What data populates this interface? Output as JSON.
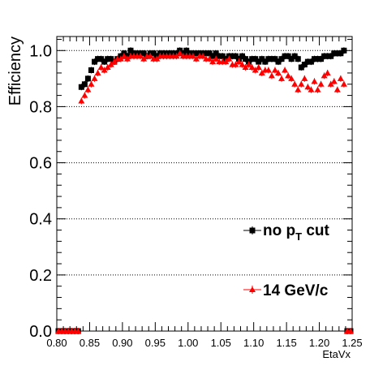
{
  "chart_data": {
    "type": "scatter",
    "title": "",
    "xlabel": "EtaVx",
    "ylabel": "Efficiency",
    "xlim": [
      0.8,
      1.25
    ],
    "ylim": [
      0.0,
      1.05
    ],
    "x_ticks": [
      "0.80",
      "0.85",
      "0.90",
      "0.95",
      "1.00",
      "1.05",
      "1.10",
      "1.15",
      "1.20",
      "1.25"
    ],
    "y_ticks": [
      "0.0",
      "0.2",
      "0.4",
      "0.6",
      "0.8",
      "1.0"
    ],
    "grid": "horizontal-dotted",
    "legend_placement": "bottom-right",
    "series": [
      {
        "name": "no p_T cut",
        "legend_main": "no p",
        "legend_sub": "T",
        "legend_tail": " cut",
        "marker": "square",
        "color": "#000000",
        "x": [
          0.8025,
          0.8075,
          0.8125,
          0.8175,
          0.8225,
          0.8275,
          0.8325,
          0.8375,
          0.8425,
          0.8475,
          0.8525,
          0.8575,
          0.8625,
          0.8675,
          0.8725,
          0.8775,
          0.8825,
          0.8875,
          0.8925,
          0.8975,
          0.9025,
          0.9075,
          0.9125,
          0.9175,
          0.9225,
          0.9275,
          0.9325,
          0.9375,
          0.9425,
          0.9475,
          0.9525,
          0.9575,
          0.9625,
          0.9675,
          0.9725,
          0.9775,
          0.9825,
          0.9875,
          0.9925,
          0.9975,
          1.0025,
          1.0075,
          1.0125,
          1.0175,
          1.0225,
          1.0275,
          1.0325,
          1.0375,
          1.0425,
          1.0475,
          1.0525,
          1.0575,
          1.0625,
          1.0675,
          1.0725,
          1.0775,
          1.0825,
          1.0875,
          1.0925,
          1.0975,
          1.1025,
          1.1075,
          1.1125,
          1.1175,
          1.1225,
          1.1275,
          1.1325,
          1.1375,
          1.1425,
          1.1475,
          1.1525,
          1.1575,
          1.1625,
          1.1675,
          1.1725,
          1.1775,
          1.1825,
          1.1875,
          1.1925,
          1.1975,
          1.2025,
          1.2075,
          1.2125,
          1.2175,
          1.2225,
          1.2275,
          1.2325,
          1.2375,
          1.2425,
          1.2475
        ],
        "y": [
          0.0,
          0.0,
          0.0,
          0.0,
          0.0,
          0.0,
          0.0,
          0.87,
          0.88,
          0.9,
          0.93,
          0.96,
          0.97,
          0.97,
          0.96,
          0.97,
          0.97,
          0.96,
          0.97,
          0.98,
          0.99,
          0.98,
          1.0,
          0.99,
          0.99,
          0.99,
          0.99,
          0.98,
          0.99,
          0.99,
          0.98,
          0.99,
          0.99,
          0.99,
          0.99,
          0.99,
          0.99,
          1.0,
          0.99,
          1.0,
          0.99,
          0.99,
          0.99,
          0.99,
          0.99,
          0.99,
          0.99,
          0.98,
          0.99,
          0.98,
          0.98,
          0.97,
          0.98,
          0.98,
          0.98,
          0.97,
          0.98,
          0.97,
          0.96,
          0.97,
          0.97,
          0.96,
          0.97,
          0.96,
          0.97,
          0.97,
          0.97,
          0.96,
          0.97,
          0.98,
          0.98,
          0.97,
          0.98,
          0.97,
          0.94,
          0.95,
          0.96,
          0.96,
          0.97,
          0.97,
          0.97,
          0.98,
          0.98,
          0.98,
          0.99,
          0.99,
          0.99,
          1.0,
          0.0,
          0.0
        ]
      },
      {
        "name": "14 GeV/c",
        "legend_main": "14 GeV/c",
        "marker": "triangle",
        "color": "#ff0000",
        "x": [
          0.8025,
          0.8075,
          0.8125,
          0.8175,
          0.8225,
          0.8275,
          0.8325,
          0.8375,
          0.8425,
          0.8475,
          0.8525,
          0.8575,
          0.8625,
          0.8675,
          0.8725,
          0.8775,
          0.8825,
          0.8875,
          0.8925,
          0.8975,
          0.9025,
          0.9075,
          0.9125,
          0.9175,
          0.9225,
          0.9275,
          0.9325,
          0.9375,
          0.9425,
          0.9475,
          0.9525,
          0.9575,
          0.9625,
          0.9675,
          0.9725,
          0.9775,
          0.9825,
          0.9875,
          0.9925,
          0.9975,
          1.0025,
          1.0075,
          1.0125,
          1.0175,
          1.0225,
          1.0275,
          1.0325,
          1.0375,
          1.0425,
          1.0475,
          1.0525,
          1.0575,
          1.0625,
          1.0675,
          1.0725,
          1.0775,
          1.0825,
          1.0875,
          1.0925,
          1.0975,
          1.1025,
          1.1075,
          1.1125,
          1.1175,
          1.1225,
          1.1275,
          1.1325,
          1.1375,
          1.1425,
          1.1475,
          1.1525,
          1.1575,
          1.1625,
          1.1675,
          1.1725,
          1.1775,
          1.1825,
          1.1875,
          1.1925,
          1.1975,
          1.2025,
          1.2075,
          1.2125,
          1.2175,
          1.2225,
          1.2275,
          1.2325,
          1.2375,
          1.2425,
          1.2475
        ],
        "y": [
          0.0,
          0.0,
          0.0,
          0.0,
          0.0,
          0.0,
          0.0,
          0.82,
          0.84,
          0.86,
          0.88,
          0.9,
          0.92,
          0.94,
          0.93,
          0.94,
          0.95,
          0.96,
          0.97,
          0.97,
          0.98,
          0.97,
          0.98,
          0.98,
          0.98,
          0.98,
          0.97,
          0.98,
          0.98,
          0.97,
          0.97,
          0.98,
          0.98,
          0.98,
          0.98,
          0.98,
          0.98,
          0.99,
          0.98,
          0.98,
          0.98,
          0.98,
          0.97,
          0.98,
          0.98,
          0.97,
          0.97,
          0.96,
          0.97,
          0.96,
          0.96,
          0.96,
          0.97,
          0.95,
          0.95,
          0.96,
          0.95,
          0.94,
          0.95,
          0.94,
          0.93,
          0.94,
          0.92,
          0.93,
          0.93,
          0.91,
          0.93,
          0.92,
          0.9,
          0.93,
          0.91,
          0.9,
          0.88,
          0.86,
          0.88,
          0.9,
          0.87,
          0.86,
          0.89,
          0.86,
          0.88,
          0.91,
          0.92,
          0.88,
          0.89,
          0.86,
          0.9,
          0.88,
          0.0,
          0.0
        ]
      }
    ]
  }
}
